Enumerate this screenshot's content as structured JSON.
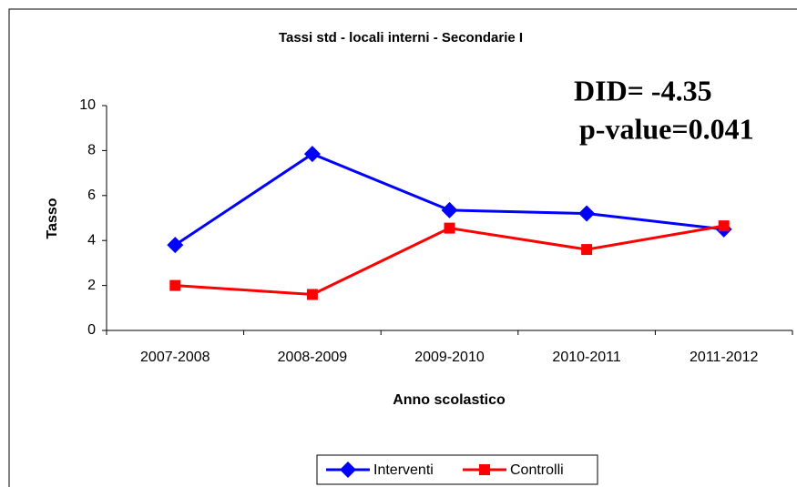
{
  "chart_data": {
    "type": "line",
    "title": "Tassi std - locali interni - Secondarie I",
    "x_label": "Anno scolastico",
    "y_label": "Tasso",
    "annotations": [
      "DID= -4.35",
      "p-value=0.041"
    ],
    "categories": [
      "2007-2008",
      "2008-2009",
      "2009-2010",
      "2010-2011",
      "2011-2012"
    ],
    "series": [
      {
        "name": "Interventi",
        "color": "#0000ff",
        "marker": "diamond",
        "values": [
          3.8,
          7.85,
          5.35,
          5.2,
          4.5
        ]
      },
      {
        "name": "Controlli",
        "color": "#ff0000",
        "marker": "square",
        "values": [
          2.0,
          1.6,
          4.55,
          3.6,
          4.65
        ]
      }
    ],
    "ylim": [
      0,
      10
    ],
    "yticks": [
      0,
      2,
      4,
      6,
      8,
      10
    ],
    "legend": "bottom"
  }
}
